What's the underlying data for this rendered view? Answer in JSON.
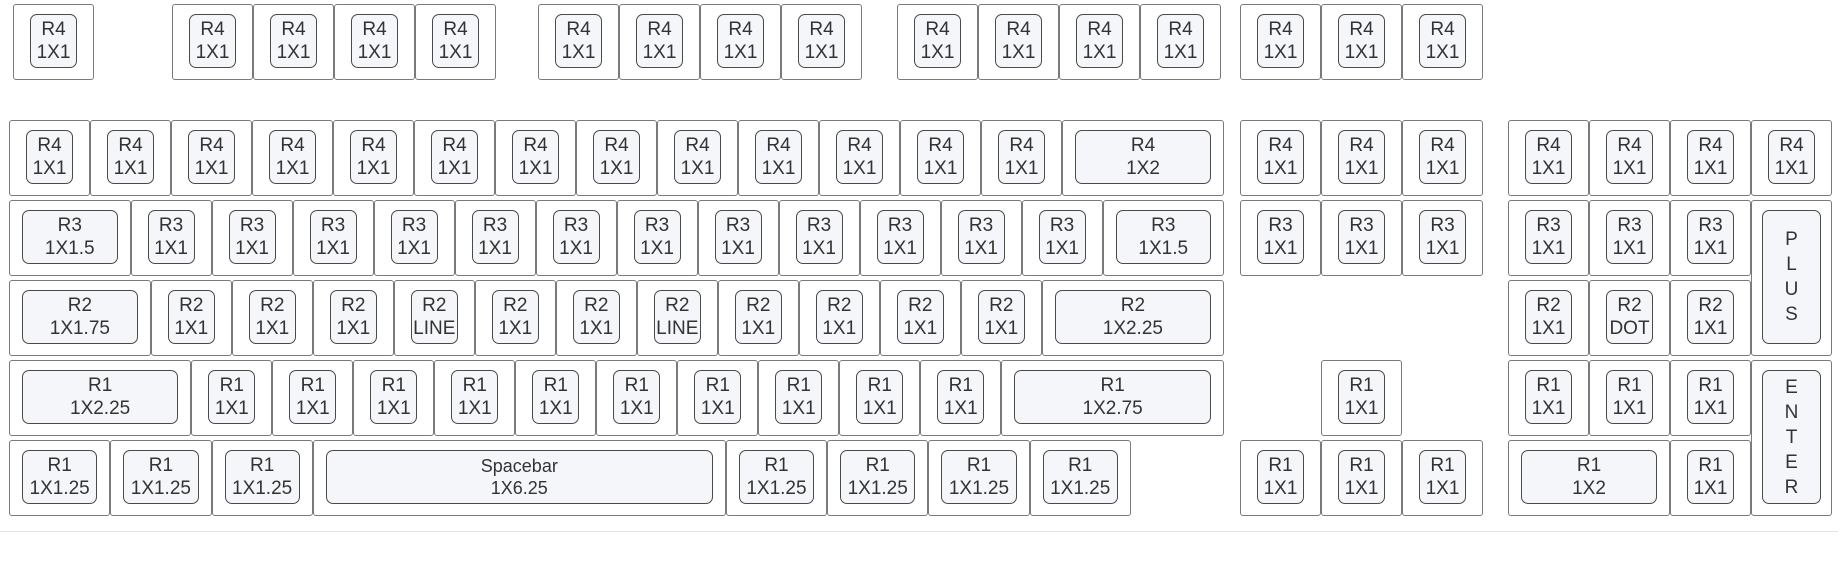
{
  "labels": {
    "r4": "R4",
    "r3": "R3",
    "r2": "R2",
    "r1": "R1",
    "u1": "1X1",
    "u125": "1X1.25",
    "u15": "1X1.5",
    "u175": "1X1.75",
    "u2": "1X2",
    "u225": "1X2.25",
    "u275": "1X2.75",
    "u625": "1X6.25",
    "line": "LINE",
    "dot": "DOT",
    "spacebar": "Spacebar",
    "plus": [
      "P",
      "L",
      "U",
      "S"
    ],
    "enter": [
      "E",
      "N",
      "T",
      "E",
      "R"
    ]
  },
  "rows": [
    {
      "name": "function-row",
      "keys": [
        {
          "id": "esc",
          "line1": "R4",
          "line2": "1X1"
        },
        {
          "id": "f1",
          "line1": "R4",
          "line2": "1X1"
        },
        {
          "id": "f2",
          "line1": "R4",
          "line2": "1X1"
        },
        {
          "id": "f3",
          "line1": "R4",
          "line2": "1X1"
        },
        {
          "id": "f4",
          "line1": "R4",
          "line2": "1X1"
        },
        {
          "id": "f5",
          "line1": "R4",
          "line2": "1X1"
        },
        {
          "id": "f6",
          "line1": "R4",
          "line2": "1X1"
        },
        {
          "id": "f7",
          "line1": "R4",
          "line2": "1X1"
        },
        {
          "id": "f8",
          "line1": "R4",
          "line2": "1X1"
        },
        {
          "id": "f9",
          "line1": "R4",
          "line2": "1X1"
        },
        {
          "id": "f10",
          "line1": "R4",
          "line2": "1X1"
        },
        {
          "id": "f11",
          "line1": "R4",
          "line2": "1X1"
        },
        {
          "id": "f12",
          "line1": "R4",
          "line2": "1X1"
        },
        {
          "id": "print-screen",
          "line1": "R4",
          "line2": "1X1"
        },
        {
          "id": "scroll-lock",
          "line1": "R4",
          "line2": "1X1"
        },
        {
          "id": "pause",
          "line1": "R4",
          "line2": "1X1"
        }
      ]
    },
    {
      "name": "number-row",
      "keys": [
        {
          "id": "grave",
          "line1": "R4",
          "line2": "1X1"
        },
        {
          "id": "n1",
          "line1": "R4",
          "line2": "1X1"
        },
        {
          "id": "n2",
          "line1": "R4",
          "line2": "1X1"
        },
        {
          "id": "n3",
          "line1": "R4",
          "line2": "1X1"
        },
        {
          "id": "n4",
          "line1": "R4",
          "line2": "1X1"
        },
        {
          "id": "n5",
          "line1": "R4",
          "line2": "1X1"
        },
        {
          "id": "n6",
          "line1": "R4",
          "line2": "1X1"
        },
        {
          "id": "n7",
          "line1": "R4",
          "line2": "1X1"
        },
        {
          "id": "n8",
          "line1": "R4",
          "line2": "1X1"
        },
        {
          "id": "n9",
          "line1": "R4",
          "line2": "1X1"
        },
        {
          "id": "n0",
          "line1": "R4",
          "line2": "1X1"
        },
        {
          "id": "minus",
          "line1": "R4",
          "line2": "1X1"
        },
        {
          "id": "equal",
          "line1": "R4",
          "line2": "1X1"
        },
        {
          "id": "backspace",
          "line1": "R4",
          "line2": "1X2"
        },
        {
          "id": "insert",
          "line1": "R4",
          "line2": "1X1"
        },
        {
          "id": "home",
          "line1": "R4",
          "line2": "1X1"
        },
        {
          "id": "page-up",
          "line1": "R4",
          "line2": "1X1"
        },
        {
          "id": "num-lock",
          "line1": "R4",
          "line2": "1X1"
        },
        {
          "id": "num-divide",
          "line1": "R4",
          "line2": "1X1"
        },
        {
          "id": "num-multiply",
          "line1": "R4",
          "line2": "1X1"
        },
        {
          "id": "num-minus",
          "line1": "R4",
          "line2": "1X1"
        }
      ]
    },
    {
      "name": "top-alpha-row",
      "keys": [
        {
          "id": "tab",
          "line1": "R3",
          "line2": "1X1.5"
        },
        {
          "id": "q",
          "line1": "R3",
          "line2": "1X1"
        },
        {
          "id": "w",
          "line1": "R3",
          "line2": "1X1"
        },
        {
          "id": "e",
          "line1": "R3",
          "line2": "1X1"
        },
        {
          "id": "r",
          "line1": "R3",
          "line2": "1X1"
        },
        {
          "id": "t",
          "line1": "R3",
          "line2": "1X1"
        },
        {
          "id": "y",
          "line1": "R3",
          "line2": "1X1"
        },
        {
          "id": "u",
          "line1": "R3",
          "line2": "1X1"
        },
        {
          "id": "i",
          "line1": "R3",
          "line2": "1X1"
        },
        {
          "id": "o",
          "line1": "R3",
          "line2": "1X1"
        },
        {
          "id": "p",
          "line1": "R3",
          "line2": "1X1"
        },
        {
          "id": "lbracket",
          "line1": "R3",
          "line2": "1X1"
        },
        {
          "id": "rbracket",
          "line1": "R3",
          "line2": "1X1"
        },
        {
          "id": "backslash",
          "line1": "R3",
          "line2": "1X1.5"
        },
        {
          "id": "delete",
          "line1": "R3",
          "line2": "1X1"
        },
        {
          "id": "end",
          "line1": "R3",
          "line2": "1X1"
        },
        {
          "id": "page-down",
          "line1": "R3",
          "line2": "1X1"
        },
        {
          "id": "num7",
          "line1": "R3",
          "line2": "1X1"
        },
        {
          "id": "num8",
          "line1": "R3",
          "line2": "1X1"
        },
        {
          "id": "num9",
          "line1": "R3",
          "line2": "1X1"
        },
        {
          "id": "num-plus",
          "vertical": "PLUS"
        }
      ]
    },
    {
      "name": "home-row",
      "keys": [
        {
          "id": "caps-lock",
          "line1": "R2",
          "line2": "1X1.75"
        },
        {
          "id": "a",
          "line1": "R2",
          "line2": "1X1"
        },
        {
          "id": "s",
          "line1": "R2",
          "line2": "1X1"
        },
        {
          "id": "d",
          "line1": "R2",
          "line2": "1X1"
        },
        {
          "id": "f",
          "line1": "R2",
          "line2": "LINE"
        },
        {
          "id": "g",
          "line1": "R2",
          "line2": "1X1"
        },
        {
          "id": "h",
          "line1": "R2",
          "line2": "1X1"
        },
        {
          "id": "j",
          "line1": "R2",
          "line2": "LINE"
        },
        {
          "id": "k",
          "line1": "R2",
          "line2": "1X1"
        },
        {
          "id": "l",
          "line1": "R2",
          "line2": "1X1"
        },
        {
          "id": "semicolon",
          "line1": "R2",
          "line2": "1X1"
        },
        {
          "id": "quote",
          "line1": "R2",
          "line2": "1X1"
        },
        {
          "id": "enter",
          "line1": "R2",
          "line2": "1X2.25"
        },
        {
          "id": "num4",
          "line1": "R2",
          "line2": "1X1"
        },
        {
          "id": "num5",
          "line1": "R2",
          "line2": "DOT"
        },
        {
          "id": "num6",
          "line1": "R2",
          "line2": "1X1"
        }
      ]
    },
    {
      "name": "bottom-alpha-row",
      "keys": [
        {
          "id": "left-shift",
          "line1": "R1",
          "line2": "1X2.25"
        },
        {
          "id": "z",
          "line1": "R1",
          "line2": "1X1"
        },
        {
          "id": "x",
          "line1": "R1",
          "line2": "1X1"
        },
        {
          "id": "c",
          "line1": "R1",
          "line2": "1X1"
        },
        {
          "id": "v",
          "line1": "R1",
          "line2": "1X1"
        },
        {
          "id": "b",
          "line1": "R1",
          "line2": "1X1"
        },
        {
          "id": "n",
          "line1": "R1",
          "line2": "1X1"
        },
        {
          "id": "m",
          "line1": "R1",
          "line2": "1X1"
        },
        {
          "id": "comma",
          "line1": "R1",
          "line2": "1X1"
        },
        {
          "id": "period",
          "line1": "R1",
          "line2": "1X1"
        },
        {
          "id": "slash",
          "line1": "R1",
          "line2": "1X1"
        },
        {
          "id": "right-shift",
          "line1": "R1",
          "line2": "1X2.75"
        },
        {
          "id": "arrow-up",
          "line1": "R1",
          "line2": "1X1"
        },
        {
          "id": "num1",
          "line1": "R1",
          "line2": "1X1"
        },
        {
          "id": "num2",
          "line1": "R1",
          "line2": "1X1"
        },
        {
          "id": "num3",
          "line1": "R1",
          "line2": "1X1"
        },
        {
          "id": "num-enter",
          "vertical": "ENTER"
        }
      ]
    },
    {
      "name": "space-row",
      "keys": [
        {
          "id": "left-ctrl",
          "line1": "R1",
          "line2": "1X1.25"
        },
        {
          "id": "left-win",
          "line1": "R1",
          "line2": "1X1.25"
        },
        {
          "id": "left-alt",
          "line1": "R1",
          "line2": "1X1.25"
        },
        {
          "id": "spacebar",
          "line1": "Spacebar",
          "line2": "1X6.25"
        },
        {
          "id": "right-alt",
          "line1": "R1",
          "line2": "1X1.25"
        },
        {
          "id": "right-win",
          "line1": "R1",
          "line2": "1X1.25"
        },
        {
          "id": "menu",
          "line1": "R1",
          "line2": "1X1.25"
        },
        {
          "id": "right-ctrl",
          "line1": "R1",
          "line2": "1X1.25"
        },
        {
          "id": "arrow-left",
          "line1": "R1",
          "line2": "1X1"
        },
        {
          "id": "arrow-down",
          "line1": "R1",
          "line2": "1X1"
        },
        {
          "id": "arrow-right",
          "line1": "R1",
          "line2": "1X1"
        },
        {
          "id": "num0",
          "line1": "R1",
          "line2": "1X2"
        },
        {
          "id": "num-dot",
          "line1": "R1",
          "line2": "1X1"
        }
      ]
    }
  ]
}
